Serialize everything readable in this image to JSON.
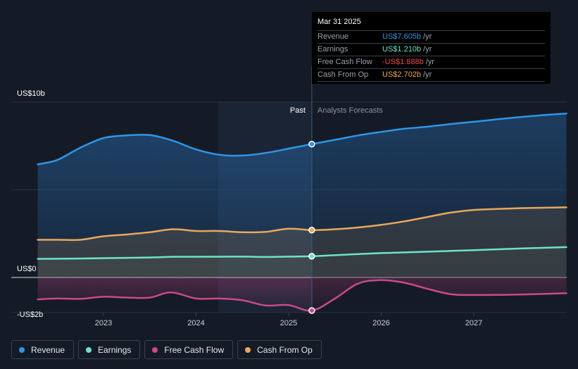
{
  "chart_data": {
    "type": "line",
    "title": "",
    "y_axis": {
      "unit": "US$",
      "labels": [
        "US$10b",
        "US$0",
        "-US$2b"
      ],
      "ylim": [
        -2,
        10
      ]
    },
    "x_axis": {
      "ticks": [
        "2023",
        "2024",
        "2025",
        "2026",
        "2027"
      ],
      "xlim": [
        2022.29,
        2028.0
      ]
    },
    "divider": {
      "x": 2025.25,
      "past_label": "Past",
      "forecast_label": "Analysts Forecasts"
    },
    "series": [
      {
        "name": "Revenue",
        "color": "#2f95e6",
        "points": [
          [
            2022.29,
            6.45
          ],
          [
            2022.5,
            6.7
          ],
          [
            2022.75,
            7.4
          ],
          [
            2023.0,
            7.95
          ],
          [
            2023.25,
            8.1
          ],
          [
            2023.5,
            8.12
          ],
          [
            2023.75,
            7.8
          ],
          [
            2024.0,
            7.3
          ],
          [
            2024.25,
            7.0
          ],
          [
            2024.5,
            6.95
          ],
          [
            2024.75,
            7.1
          ],
          [
            2025.0,
            7.35
          ],
          [
            2025.25,
            7.605
          ],
          [
            2025.5,
            7.85
          ],
          [
            2025.75,
            8.1
          ],
          [
            2026.0,
            8.3
          ],
          [
            2026.25,
            8.48
          ],
          [
            2026.5,
            8.6
          ],
          [
            2026.75,
            8.75
          ],
          [
            2027.0,
            8.88
          ],
          [
            2027.5,
            9.15
          ],
          [
            2028.0,
            9.35
          ]
        ]
      },
      {
        "name": "Earnings",
        "color": "#6fe3c7",
        "points": [
          [
            2022.29,
            1.06
          ],
          [
            2022.75,
            1.08
          ],
          [
            2023.0,
            1.1
          ],
          [
            2023.5,
            1.14
          ],
          [
            2023.75,
            1.18
          ],
          [
            2024.0,
            1.18
          ],
          [
            2024.5,
            1.19
          ],
          [
            2024.75,
            1.17
          ],
          [
            2025.0,
            1.19
          ],
          [
            2025.25,
            1.21
          ],
          [
            2025.5,
            1.27
          ],
          [
            2026.0,
            1.39
          ],
          [
            2026.5,
            1.47
          ],
          [
            2027.0,
            1.56
          ],
          [
            2027.5,
            1.65
          ],
          [
            2028.0,
            1.73
          ]
        ]
      },
      {
        "name": "Free Cash Flow",
        "color": "#c9498c",
        "points": [
          [
            2022.29,
            -1.25
          ],
          [
            2022.5,
            -1.2
          ],
          [
            2022.75,
            -1.22
          ],
          [
            2023.0,
            -1.1
          ],
          [
            2023.25,
            -1.15
          ],
          [
            2023.5,
            -1.15
          ],
          [
            2023.73,
            -0.85
          ],
          [
            2024.0,
            -1.2
          ],
          [
            2024.25,
            -1.2
          ],
          [
            2024.5,
            -1.3
          ],
          [
            2024.75,
            -1.6
          ],
          [
            2025.0,
            -1.58
          ],
          [
            2025.25,
            -1.888
          ],
          [
            2025.5,
            -1.2
          ],
          [
            2025.75,
            -0.35
          ],
          [
            2026.0,
            -0.15
          ],
          [
            2026.25,
            -0.3
          ],
          [
            2026.5,
            -0.65
          ],
          [
            2026.75,
            -0.95
          ],
          [
            2027.0,
            -1.0
          ],
          [
            2027.5,
            -0.97
          ],
          [
            2028.0,
            -0.9
          ]
        ]
      },
      {
        "name": "Cash From Op",
        "color": "#e8a85c",
        "points": [
          [
            2022.29,
            2.15
          ],
          [
            2022.5,
            2.15
          ],
          [
            2022.75,
            2.15
          ],
          [
            2023.0,
            2.35
          ],
          [
            2023.25,
            2.45
          ],
          [
            2023.5,
            2.58
          ],
          [
            2023.75,
            2.75
          ],
          [
            2024.0,
            2.65
          ],
          [
            2024.25,
            2.65
          ],
          [
            2024.5,
            2.58
          ],
          [
            2024.75,
            2.6
          ],
          [
            2025.0,
            2.78
          ],
          [
            2025.25,
            2.702
          ],
          [
            2025.5,
            2.75
          ],
          [
            2025.75,
            2.85
          ],
          [
            2026.0,
            3.0
          ],
          [
            2026.25,
            3.2
          ],
          [
            2026.5,
            3.45
          ],
          [
            2026.75,
            3.7
          ],
          [
            2027.0,
            3.85
          ],
          [
            2027.5,
            3.95
          ],
          [
            2028.0,
            4.0
          ]
        ]
      }
    ],
    "tooltip": {
      "date": "Mar 31 2025",
      "rows": [
        {
          "name": "Revenue",
          "value": "US$7.605b",
          "unit": "/yr",
          "color": "#2f95e6"
        },
        {
          "name": "Earnings",
          "value": "US$1.210b",
          "unit": "/yr",
          "color": "#6fe3c7"
        },
        {
          "name": "Free Cash Flow",
          "value": "-US$1.888b",
          "unit": "/yr",
          "color": "#ea4b4b"
        },
        {
          "name": "Cash From Op",
          "value": "US$2.702b",
          "unit": "/yr",
          "color": "#e8a85c"
        }
      ]
    }
  },
  "legend": [
    {
      "label": "Revenue",
      "color": "#2f95e6"
    },
    {
      "label": "Earnings",
      "color": "#6fe3c7"
    },
    {
      "label": "Free Cash Flow",
      "color": "#c9498c"
    },
    {
      "label": "Cash From Op",
      "color": "#e8a85c"
    }
  ]
}
